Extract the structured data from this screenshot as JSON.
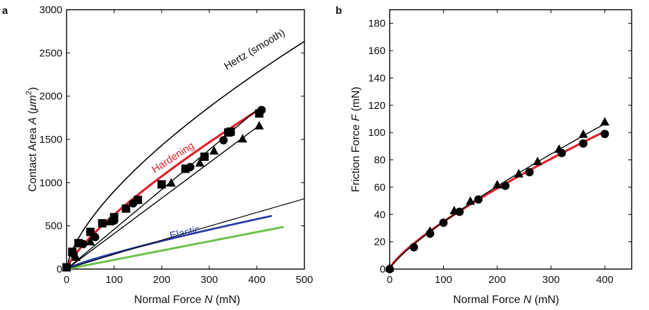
{
  "panels": [
    {
      "panel_label": "a",
      "ylabel_parts": [
        "Contact Area ",
        "A",
        " (",
        "μm",
        "2",
        ")"
      ],
      "xlabel_parts": [
        "Normal Force ",
        "N",
        " (mN)"
      ],
      "annotations": {
        "hertz": "Hertz (smooth)",
        "hardening": "Hardening",
        "elastic": "Elastic"
      },
      "chart_data": {
        "type": "scatter",
        "xlim": [
          0,
          500
        ],
        "ylim": [
          0,
          3000
        ],
        "x_ticks": [
          0,
          100,
          200,
          300,
          400,
          500
        ],
        "y_ticks": [
          0,
          500,
          1000,
          1500,
          2000,
          2500,
          3000
        ],
        "colors": {
          "hertz": "#000000",
          "hardening": "#e0202a",
          "elastic": "#2a3aa8",
          "elastic_alt": "#6cc24a",
          "markers": "#000000"
        },
        "series": [
          {
            "marker": "square",
            "points": [
              [
                0,
                20
              ],
              [
                12,
                200
              ],
              [
                25,
                300
              ],
              [
                50,
                430
              ],
              [
                75,
                530
              ],
              [
                100,
                600
              ],
              [
                125,
                700
              ],
              [
                150,
                800
              ],
              [
                200,
                980
              ],
              [
                250,
                1160
              ],
              [
                290,
                1300
              ],
              [
                340,
                1580
              ],
              [
                345,
                1590
              ],
              [
                405,
                1800
              ]
            ]
          },
          {
            "marker": "circle",
            "points": [
              [
                0,
                20
              ],
              [
                15,
                170
              ],
              [
                35,
                290
              ],
              [
                60,
                370
              ],
              [
                100,
                560
              ],
              [
                140,
                760
              ],
              [
                200,
                980
              ],
              [
                260,
                1180
              ],
              [
                330,
                1490
              ],
              [
                345,
                1580
              ],
              [
                410,
                1840
              ]
            ]
          },
          {
            "marker": "triangle",
            "points": [
              [
                0,
                20
              ],
              [
                20,
                140
              ],
              [
                50,
                320
              ],
              [
                90,
                550
              ],
              [
                150,
                800
              ],
              [
                220,
                1000
              ],
              [
                280,
                1230
              ],
              [
                310,
                1370
              ],
              [
                370,
                1510
              ],
              [
                405,
                1660
              ]
            ]
          }
        ],
        "curves": [
          {
            "label": "Hertz (smooth)",
            "fit": "power",
            "coef": 41.8,
            "exp": 0.6667,
            "x_range": [
              0,
              500
            ]
          },
          {
            "label": "Hardening",
            "fit": "power",
            "coef": 18.14,
            "exp": 0.77,
            "x_range": [
              0,
              410
            ]
          },
          {
            "label": "Elastic",
            "fit": "power",
            "coef": 4.0,
            "exp": 0.83,
            "x_range": [
              0,
              430
            ]
          },
          {
            "label": "",
            "fit": "linear",
            "slope": 1.07,
            "x_range": [
              0,
              455
            ]
          },
          {
            "label": "",
            "fit": "power",
            "coef": 1.96,
            "exp": 0.97,
            "x_range": [
              0,
              500
            ]
          },
          {
            "label": "",
            "fit": "linear",
            "slope": 4.6,
            "x_range": [
              0,
              405
            ]
          },
          {
            "label": "",
            "fit": "linear",
            "slope": 4.1,
            "x_range": [
              0,
              405
            ]
          }
        ]
      }
    },
    {
      "panel_label": "b",
      "ylabel_parts": [
        "Friction Force ",
        "F",
        " (mN)"
      ],
      "xlabel_parts": [
        "Normal Force ",
        "N",
        " (mN)"
      ],
      "chart_data": {
        "type": "scatter",
        "xlim": [
          0,
          450
        ],
        "ylim": [
          0,
          190
        ],
        "x_ticks": [
          0,
          100,
          200,
          300,
          400
        ],
        "y_ticks": [
          0,
          20,
          40,
          60,
          80,
          100,
          120,
          140,
          160,
          180
        ],
        "colors": {
          "fit": "#e0202a",
          "markers": "#000000"
        },
        "series": [
          {
            "marker": "circle",
            "points": [
              [
                0,
                0
              ],
              [
                45,
                16
              ],
              [
                75,
                26
              ],
              [
                100,
                34
              ],
              [
                130,
                42
              ],
              [
                165,
                51
              ],
              [
                215,
                61
              ],
              [
                260,
                71
              ],
              [
                320,
                85
              ],
              [
                360,
                92
              ],
              [
                400,
                99
              ]
            ]
          },
          {
            "marker": "triangle",
            "points": [
              [
                0,
                1
              ],
              [
                75,
                28
              ],
              [
                120,
                43
              ],
              [
                150,
                50
              ],
              [
                200,
                62
              ],
              [
                240,
                70
              ],
              [
                275,
                79
              ],
              [
                315,
                88
              ],
              [
                360,
                99
              ],
              [
                400,
                108
              ]
            ]
          }
        ],
        "curves": [
          {
            "label": "",
            "fit": "power",
            "coef": 1.0,
            "exp": 0.77,
            "x_range": [
              0,
              400
            ],
            "color": "fit"
          },
          {
            "label": "",
            "fit": "power",
            "coef": 0.83,
            "exp": 0.81,
            "x_range": [
              0,
              400
            ],
            "color": "markers"
          }
        ]
      }
    }
  ]
}
